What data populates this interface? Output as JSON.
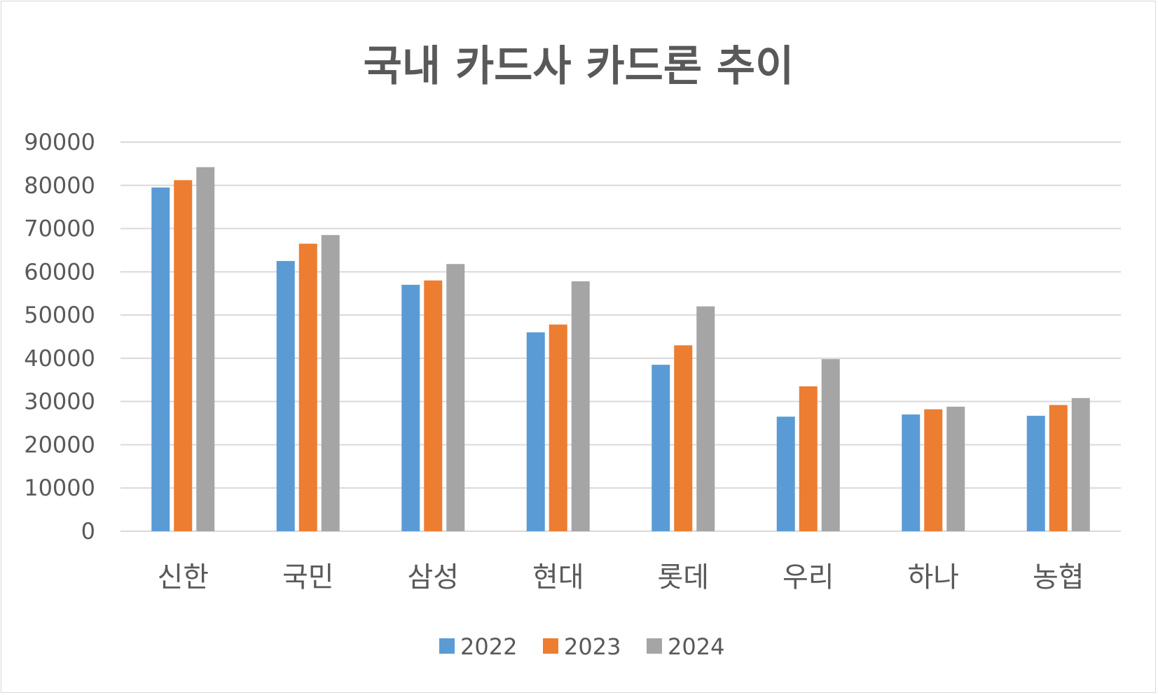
{
  "chart_data": {
    "type": "bar",
    "title": "국내 카드사 카드론 추이",
    "xlabel": "",
    "ylabel": "",
    "categories": [
      "신한",
      "국민",
      "삼성",
      "현대",
      "롯데",
      "우리",
      "하나",
      "농협"
    ],
    "series": [
      {
        "name": "2022",
        "color": "#5b9bd5",
        "values": [
          79500,
          62500,
          57000,
          46000,
          38500,
          26500,
          27000,
          26700
        ]
      },
      {
        "name": "2023",
        "color": "#ed7d31",
        "values": [
          81200,
          66500,
          58000,
          47800,
          43000,
          33500,
          28200,
          29200
        ]
      },
      {
        "name": "2024",
        "color": "#a5a5a5",
        "values": [
          84200,
          68500,
          61800,
          57800,
          52000,
          39800,
          28800,
          30800
        ]
      }
    ],
    "ylim": [
      0,
      90000
    ],
    "yticks": [
      "0",
      "10000",
      "20000",
      "30000",
      "40000",
      "50000",
      "60000",
      "70000",
      "80000",
      "90000"
    ],
    "grid": true,
    "legend": "bottom",
    "gridline_color": "#d9d9d9"
  }
}
